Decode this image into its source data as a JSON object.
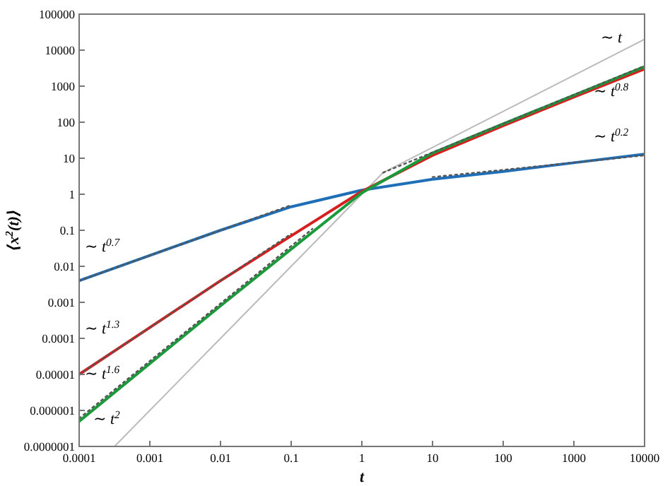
{
  "chart_data": {
    "type": "line",
    "xlabel": "t",
    "ylabel": "⟨x$^{2}$(t)⟩",
    "log": "xy",
    "grid": false,
    "line_style": "solid",
    "xlim": [
      0.0001,
      10000
    ],
    "ylim": [
      1e-07,
      100000
    ],
    "xticks": [
      {
        "value": 0.0001,
        "label": "0.0001"
      },
      {
        "value": 0.001,
        "label": "0.001"
      },
      {
        "value": 0.01,
        "label": "0.01"
      },
      {
        "value": 0.1,
        "label": "0.1"
      },
      1,
      10,
      100,
      1000,
      10000
    ],
    "yticks": [
      {
        "value": 1e-07,
        "label": "0.0000001"
      },
      {
        "value": 1e-06,
        "label": "0.000001"
      },
      {
        "value": 1e-05,
        "label": "0.00001"
      },
      {
        "value": 0.0001,
        "label": "0.0001"
      },
      {
        "value": 0.001,
        "label": "0.001"
      },
      {
        "value": 0.01,
        "label": "0.01"
      },
      {
        "value": 0.1,
        "label": "0.1"
      },
      1,
      10,
      100,
      1000,
      10000,
      100000
    ],
    "series": [
      {
        "color": "#bbbbbb",
        "x": [
          0.000316,
          0.01,
          1,
          2,
          10000
        ],
        "values": [
          1e-07,
          0.0001,
          1,
          4,
          20000
        ]
      },
      {
        "color": "#1f6fb8",
        "x": [
          0.0001,
          0.001,
          0.01,
          0.1,
          1,
          10,
          100,
          1000,
          10000
        ],
        "values": [
          0.004,
          0.02,
          0.1,
          0.45,
          1.3,
          2.6,
          4.3,
          7.5,
          13
        ]
      },
      {
        "color": "#d62020",
        "x": [
          0.0001,
          0.001,
          0.01,
          0.1,
          1,
          10,
          100,
          1000,
          10000
        ],
        "values": [
          1e-05,
          0.0002,
          0.004,
          0.07,
          1.2,
          12,
          80,
          500,
          3000
        ]
      },
      {
        "color": "#1a9a3a",
        "x": [
          0.0001,
          0.001,
          0.01,
          0.1,
          1,
          10,
          100,
          1000,
          10000
        ],
        "values": [
          5e-07,
          2e-05,
          0.0008,
          0.03,
          1.1,
          14,
          90,
          560,
          3500
        ]
      },
      {
        "color": "#555555",
        "line_style": "dotted",
        "x": [
          0.0001,
          0.1
        ],
        "values": [
          0.004,
          0.5
        ]
      },
      {
        "color": "#555555",
        "line_style": "dotted",
        "x": [
          10,
          10000
        ],
        "values": [
          3,
          12
        ]
      },
      {
        "color": "#555555",
        "line_style": "dotted",
        "x": [
          0.0001,
          0.1
        ],
        "values": [
          1e-05,
          0.08
        ]
      },
      {
        "color": "#555555",
        "line_style": "dotted",
        "x": [
          0.0001,
          0.2
        ],
        "values": [
          6e-07,
          0.11
        ]
      },
      {
        "color": "#555555",
        "line_style": "dotted",
        "x": [
          2,
          10000
        ],
        "values": [
          4,
          3650
        ]
      }
    ],
    "annotations": [
      "∼ t",
      "∼ t$^{0.8}$",
      "∼ t$^{0.2}$",
      "∼ t$^{0.7}$",
      "∼ t$^{1.3}$",
      "∼ t$^{1.6}$",
      "∼ t$^{2}$"
    ]
  }
}
